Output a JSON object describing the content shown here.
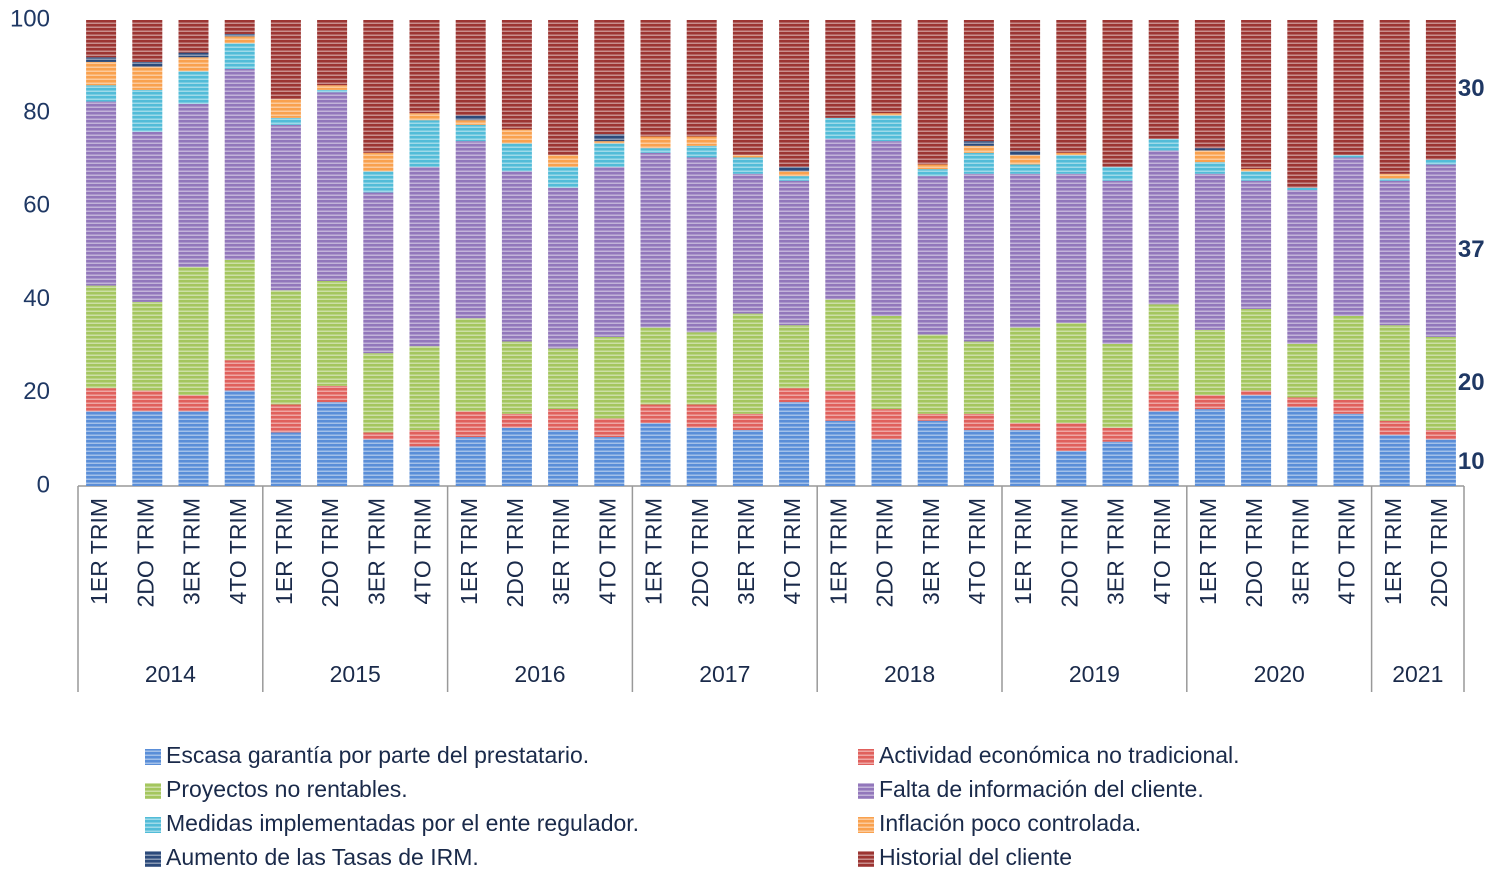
{
  "chart_data": {
    "type": "stacked_bar",
    "groups": [
      {
        "name": "2014",
        "categories": [
          "1ER TRIM",
          "2DO TRIM",
          "3ER TRIM",
          "4TO TRIM"
        ]
      },
      {
        "name": "2015",
        "categories": [
          "1ER TRIM",
          "2DO TRIM",
          "3ER TRIM",
          "4TO TRIM"
        ]
      },
      {
        "name": "2016",
        "categories": [
          "1ER TRIM",
          "2DO TRIM",
          "3ER TRIM",
          "4TO TRIM"
        ]
      },
      {
        "name": "2017",
        "categories": [
          "1ER TRIM",
          "2DO TRIM",
          "3ER TRIM",
          "4TO TRIM"
        ]
      },
      {
        "name": "2018",
        "categories": [
          "1ER TRIM",
          "2DO TRIM",
          "3ER TRIM",
          "4TO TRIM"
        ]
      },
      {
        "name": "2019",
        "categories": [
          "1ER TRIM",
          "2DO TRIM",
          "3ER TRIM",
          "4TO TRIM"
        ]
      },
      {
        "name": "2020",
        "categories": [
          "1ER TRIM",
          "2DO TRIM",
          "3ER TRIM",
          "4TO TRIM"
        ]
      },
      {
        "name": "2021",
        "categories": [
          "1ER TRIM",
          "2DO TRIM"
        ]
      }
    ],
    "series": [
      {
        "name": "Escasa garantía por parte del prestatario.",
        "color": "#5a8ed8",
        "end_label": true,
        "values": [
          16,
          16,
          16,
          20.5,
          11.5,
          18,
          10,
          8.5,
          10.5,
          12.5,
          12,
          10.5,
          13.5,
          12.5,
          12,
          18,
          14,
          10,
          14,
          12,
          12,
          7.5,
          9.5,
          16,
          16.5,
          19.5,
          17,
          15.5,
          11,
          10
        ]
      },
      {
        "name": "Actividad económica no tradicional.",
        "color": "#e0605c",
        "end_label": false,
        "values": [
          5,
          4.5,
          3.5,
          6.5,
          6,
          3.5,
          1.5,
          3.5,
          5.5,
          3,
          4.5,
          4,
          4,
          5,
          3.5,
          3,
          6.5,
          6.5,
          1.5,
          3.5,
          1.5,
          6,
          3,
          4.5,
          3,
          1,
          2,
          3,
          3,
          2
        ]
      },
      {
        "name": "Proyectos no rentables.",
        "color": "#a4c65e",
        "end_label": true,
        "values": [
          22,
          19,
          27.5,
          21.5,
          24.5,
          22.5,
          17,
          18,
          20,
          15.5,
          13,
          17.5,
          16.5,
          15.5,
          21.5,
          13.5,
          19.5,
          20,
          17,
          15.5,
          20.5,
          21.5,
          18,
          18.5,
          14,
          17.5,
          11.5,
          18,
          20.5,
          20
        ]
      },
      {
        "name": "Falta de información del cliente.",
        "color": "#9277bb",
        "end_label": true,
        "values": [
          39.5,
          36.5,
          35,
          41,
          35.5,
          40.5,
          34.5,
          38.5,
          38,
          36.5,
          34.5,
          36.5,
          37.5,
          37.5,
          30,
          31,
          34.5,
          37.5,
          34,
          36,
          33,
          32,
          35,
          33,
          33.5,
          27.5,
          33,
          34,
          31,
          37
        ]
      },
      {
        "name": "Medidas implementadas por el ente regulador.",
        "color": "#52bcd8",
        "end_label": false,
        "values": [
          3.5,
          9,
          7,
          5.5,
          1.5,
          0.5,
          4.5,
          10,
          3.5,
          6,
          4.5,
          5,
          1,
          2.5,
          3.5,
          1,
          4.5,
          5.5,
          1.5,
          4.5,
          2,
          4,
          3,
          2.5,
          2.5,
          2,
          0.5,
          0.5,
          0.5,
          1
        ]
      },
      {
        "name": "Inflación poco controlada.",
        "color": "#f9a14e",
        "end_label": false,
        "values": [
          5,
          5,
          3,
          1.5,
          4,
          1,
          4,
          1.5,
          1,
          3,
          2.5,
          0.5,
          2.5,
          2,
          0.5,
          1,
          0,
          0.5,
          1,
          1.5,
          2,
          0.5,
          0,
          0,
          2.5,
          0.5,
          0,
          0,
          1,
          0
        ]
      },
      {
        "name": "Aumento de las Tasas de IRM.",
        "color": "#2c4a7a",
        "end_label": false,
        "values": [
          1,
          1,
          1,
          0.5,
          0,
          0,
          0,
          0,
          1,
          0,
          0,
          1.5,
          0,
          0,
          0,
          1,
          0,
          0,
          0,
          1,
          1,
          0,
          0,
          0,
          0.5,
          0,
          0,
          0,
          0,
          0
        ]
      },
      {
        "name": "Historial del cliente",
        "color": "#9c3532",
        "end_label": true,
        "values": [
          8,
          9,
          7,
          3,
          17,
          14,
          28.5,
          20,
          20.5,
          23.5,
          29,
          24.5,
          25,
          25,
          29,
          31.5,
          21,
          20,
          31,
          26,
          28,
          28.5,
          31.5,
          25.5,
          27.5,
          32,
          36,
          29,
          33,
          30
        ]
      }
    ],
    "ylim": [
      0,
      100
    ],
    "yticks": [
      0,
      20,
      40,
      60,
      80,
      100
    ],
    "grid": false,
    "legend": "bottom"
  }
}
